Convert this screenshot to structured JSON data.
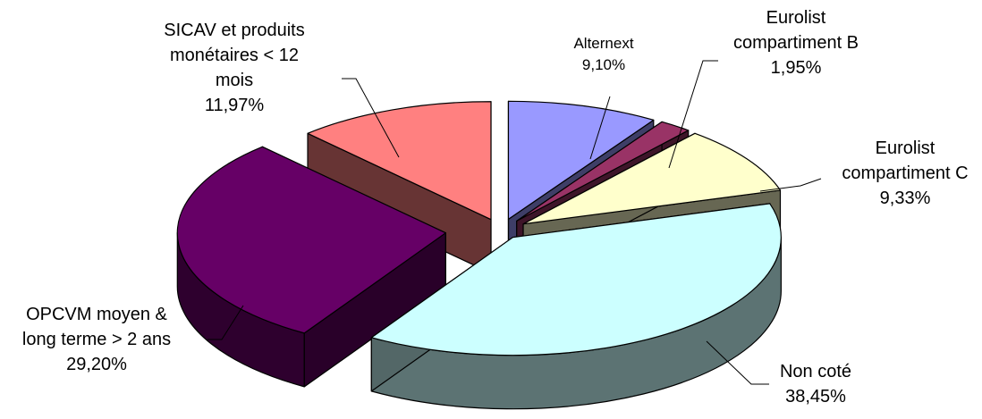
{
  "chart_data": {
    "type": "pie",
    "style": "3d-exploded",
    "slices": [
      {
        "label": [
          "Alternext"
        ],
        "value": 9.1,
        "display": "9,10%",
        "color": "#9999ff"
      },
      {
        "label": [
          "Eurolist",
          "compartiment B"
        ],
        "value": 1.95,
        "display": "1,95%",
        "color": "#993366"
      },
      {
        "label": [
          "Eurolist",
          "compartiment C"
        ],
        "value": 9.33,
        "display": "9,33%",
        "color": "#ffffcc"
      },
      {
        "label": [
          "Non coté"
        ],
        "value": 38.45,
        "display": "38,45%",
        "color": "#ccffff"
      },
      {
        "label": [
          "OPCVM moyen &",
          "long terme > 2 ans"
        ],
        "value": 29.2,
        "display": "29,20%",
        "color": "#660066"
      },
      {
        "label": [
          "SICAV et produits",
          "monétaires < 12",
          "mois"
        ],
        "value": 11.97,
        "display": "11,97%",
        "color": "#ff8080"
      }
    ]
  }
}
